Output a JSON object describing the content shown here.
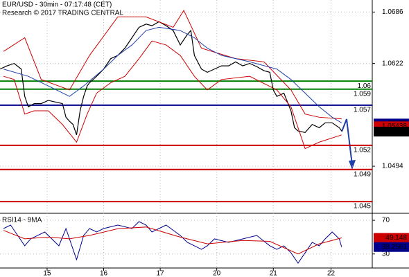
{
  "chart_data": {
    "type": "line",
    "title": "EUR/USD - 30min - 07:17:48 (CET)",
    "subtitle": "Research © 2017 TRADING CENTRAL",
    "xlim": [
      0,
      316
    ],
    "xticks": [
      {
        "value": 40,
        "label": "15"
      },
      {
        "value": 88,
        "label": "16"
      },
      {
        "value": 136,
        "label": "17"
      },
      {
        "value": 184,
        "label": "20"
      },
      {
        "value": 232,
        "label": "21"
      },
      {
        "value": 281,
        "label": "22"
      }
    ],
    "ylim": [
      1.0438,
      1.0701
    ],
    "yticks": [
      1.0686,
      1.0622,
      1.0494
    ],
    "series": [
      {
        "name": "EUR/USD",
        "color": "#000000",
        "x": [
          0,
          6,
          12,
          18,
          21,
          24,
          29,
          35,
          41,
          47,
          53,
          56,
          59,
          62,
          65,
          68,
          71,
          74,
          76,
          82,
          88,
          94,
          100,
          106,
          112,
          118,
          124,
          129,
          135,
          141,
          147,
          153,
          159,
          162,
          165,
          171,
          176,
          182,
          188,
          194,
          200,
          206,
          212,
          218,
          224,
          229,
          232,
          235,
          241,
          247,
          250,
          253,
          259,
          265,
          271,
          276,
          282,
          288,
          290
        ],
        "values": [
          1.0615,
          1.0619,
          1.0622,
          1.0615,
          1.0581,
          1.0568,
          1.0572,
          1.0572,
          1.0576,
          1.0574,
          1.0572,
          1.0555,
          1.055,
          1.0546,
          1.0533,
          1.0563,
          1.0581,
          1.0594,
          1.0598,
          1.0606,
          1.0615,
          1.0628,
          1.0632,
          1.0641,
          1.0654,
          1.0667,
          1.0671,
          1.0669,
          1.0674,
          1.0669,
          1.0663,
          1.0645,
          1.0658,
          1.0663,
          1.0632,
          1.0615,
          1.0611,
          1.0615,
          1.0619,
          1.0619,
          1.0624,
          1.0619,
          1.0622,
          1.0618,
          1.0613,
          1.0611,
          1.0589,
          1.0581,
          1.0585,
          1.0563,
          1.0542,
          1.0538,
          1.0536,
          1.0546,
          1.0542,
          1.0548,
          1.0548,
          1.0542,
          1.0538
        ]
      },
      {
        "color": "#cc0000",
        "x": [
          3,
          21,
          35,
          59,
          76,
          100,
          124,
          147,
          156,
          171,
          200,
          224,
          247,
          259,
          271,
          290
        ],
        "values": [
          1.0637,
          1.0654,
          1.0602,
          1.0589,
          1.0632,
          1.068,
          1.068,
          1.0667,
          1.0688,
          1.0641,
          1.0628,
          1.0624,
          1.0589,
          1.0559,
          1.0555,
          1.0553
        ]
      },
      {
        "color": "#cc0000",
        "x": [
          3,
          12,
          21,
          29,
          41,
          53,
          65,
          74,
          82,
          94,
          106,
          118,
          129,
          141,
          153,
          165,
          176,
          188,
          212,
          235,
          247,
          259,
          271,
          290
        ],
        "values": [
          1.0606,
          1.0602,
          1.0559,
          1.0563,
          1.0563,
          1.0546,
          1.0524,
          1.0559,
          1.0585,
          1.0598,
          1.0606,
          1.0628,
          1.065,
          1.0645,
          1.0632,
          1.0606,
          1.0589,
          1.0602,
          1.0606,
          1.0589,
          1.0568,
          1.0516,
          1.0524,
          1.0533
        ]
      },
      {
        "color": "#1f3fa8",
        "x": [
          3,
          24,
          41,
          59,
          71,
          88,
          100,
          112,
          124,
          135,
          153,
          165,
          176,
          188,
          212,
          235,
          247,
          259,
          271,
          282,
          290
        ],
        "values": [
          1.0615,
          1.0606,
          1.0594,
          1.0581,
          1.0594,
          1.0615,
          1.0632,
          1.0645,
          1.0663,
          1.0667,
          1.0663,
          1.0654,
          1.0641,
          1.0632,
          1.0624,
          1.0615,
          1.0602,
          1.0585,
          1.0568,
          1.0555,
          1.0548
        ]
      }
    ],
    "levels": [
      {
        "value": 1.06,
        "label": "1.06",
        "color": "#008000"
      },
      {
        "value": 1.059,
        "label": "1.059",
        "color": "#008000"
      },
      {
        "value": 1.057,
        "label": "1.057",
        "color": "#00008b"
      },
      {
        "value": 1.052,
        "label": "1.052",
        "color": "#cc0000"
      },
      {
        "value": 1.049,
        "label": "1.049",
        "color": "#cc0000"
      },
      {
        "value": 1.045,
        "label": "1.045",
        "color": "#cc0000"
      }
    ],
    "price_boxes": [
      {
        "value": 1.05472,
        "color": "#00008b"
      },
      {
        "value": 1.05438,
        "color": "#cc0000"
      },
      {
        "value": 1.05371,
        "color": "#000000"
      }
    ],
    "rsi": {
      "title": "RSI14 - 9MA",
      "ylim": [
        15,
        75
      ],
      "yticks": [
        70,
        30
      ],
      "series": [
        {
          "color": "#00008b",
          "x": [
            3,
            9,
            15,
            21,
            26,
            32,
            38,
            44,
            50,
            56,
            62,
            65,
            71,
            76,
            82,
            88,
            100,
            112,
            118,
            124,
            129,
            141,
            153,
            159,
            165,
            171,
            176,
            182,
            194,
            206,
            218,
            229,
            235,
            241,
            247,
            253,
            259,
            265,
            271,
            276,
            282,
            288,
            290
          ],
          "values": [
            60.2,
            64.3,
            52.0,
            39.7,
            47.9,
            52.0,
            56.1,
            47.9,
            39.7,
            60.2,
            35.5,
            23.2,
            52.0,
            60.2,
            56.1,
            60.2,
            64.3,
            60.2,
            68.4,
            64.3,
            56.1,
            64.3,
            52.0,
            43.8,
            39.7,
            35.5,
            39.7,
            47.9,
            43.8,
            47.9,
            52.0,
            39.7,
            35.5,
            39.7,
            31.4,
            19.1,
            31.4,
            43.8,
            39.7,
            47.9,
            56.1,
            47.9,
            38.3
          ]
        },
        {
          "color": "#cc0000",
          "x": [
            3,
            21,
            41,
            59,
            76,
            100,
            124,
            153,
            176,
            206,
            229,
            253,
            271,
            290
          ],
          "values": [
            58,
            48,
            50,
            48,
            52,
            60,
            62,
            50,
            42,
            46,
            45,
            30,
            42,
            49.1
          ]
        }
      ],
      "value_boxes": [
        {
          "value": 49.148,
          "color": "#cc0000"
        },
        {
          "value": 38.2561,
          "color": "#00008b"
        }
      ]
    }
  }
}
